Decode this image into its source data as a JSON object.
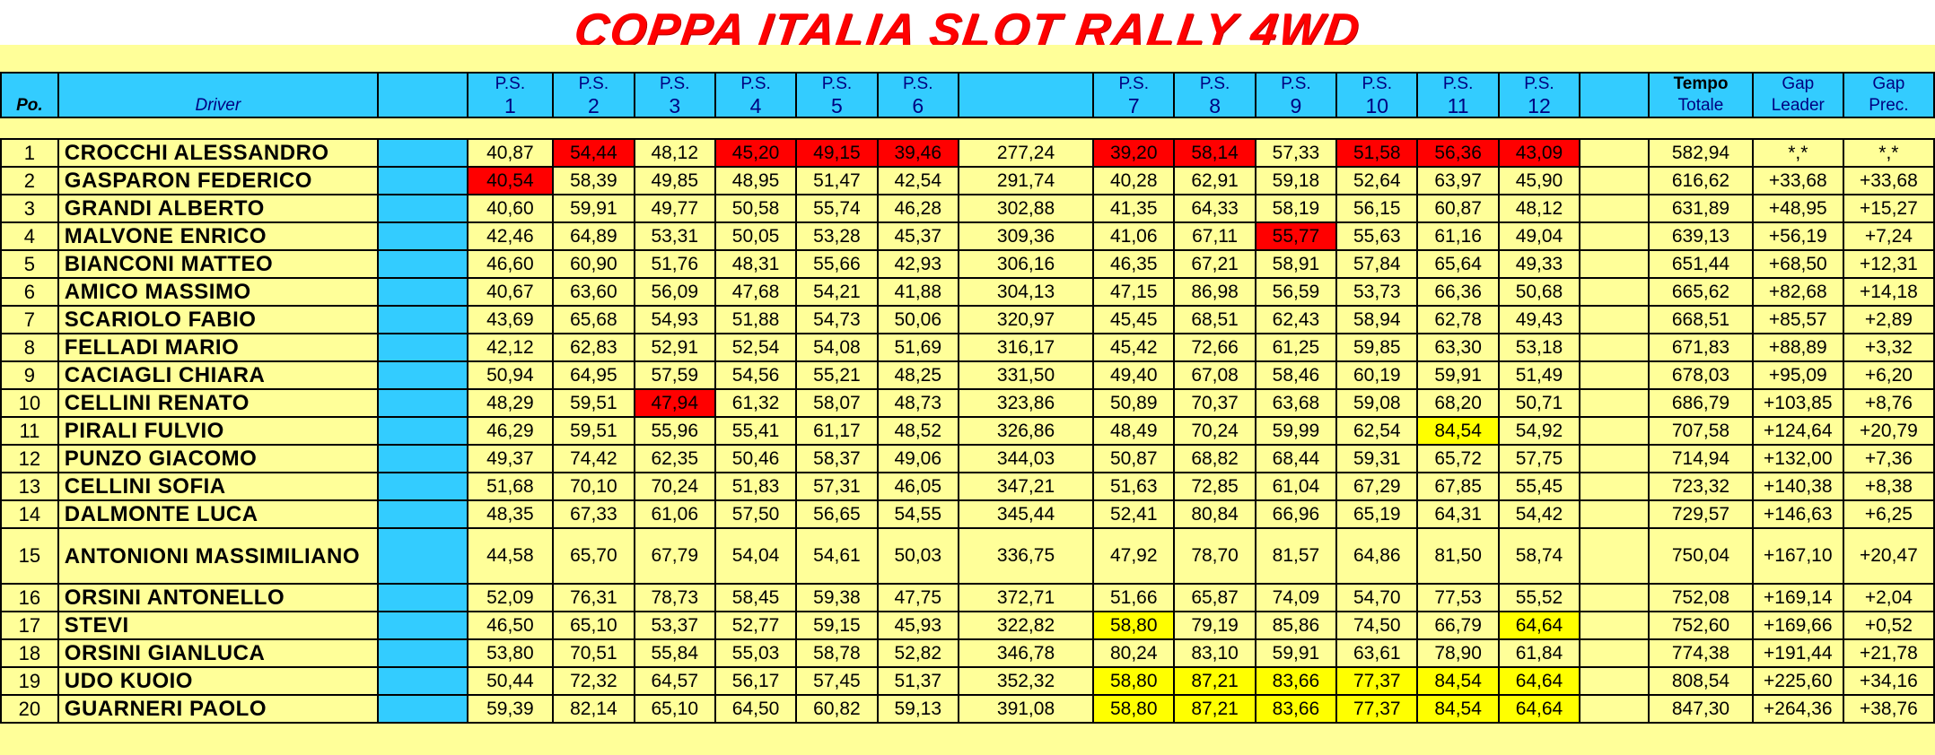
{
  "title": "COPPA ITALIA SLOT RALLY 4WD",
  "headers": {
    "pos": "Po.",
    "driver": "Driver",
    "ps": "P.S.",
    "stages": [
      "1",
      "2",
      "3",
      "4",
      "5",
      "6",
      "7",
      "8",
      "9",
      "10",
      "11",
      "12"
    ],
    "tempo_top": "Tempo",
    "tempo_bot": "Totale",
    "gap_top": "Gap",
    "gap_leader": "Leader",
    "gap_prec": "Prec."
  },
  "colors": {
    "header": "#33ccff",
    "sheet": "#ffff99",
    "best": "#ff0000",
    "penalty": "#ffff00",
    "title": "#ff0000"
  },
  "rows": [
    {
      "pos": "1",
      "name": "CROCCHI ALESSANDRO",
      "st": [
        "40,87",
        "54,44",
        "48,12",
        "45,20",
        "49,15",
        "39,46",
        "39,20",
        "58,14",
        "57,33",
        "51,58",
        "56,36",
        "43,09"
      ],
      "sub": "277,24",
      "total": "582,94",
      "gl": "*,*",
      "gp": "*,*",
      "red": [
        1,
        3,
        4,
        5,
        6,
        7,
        9,
        10,
        11
      ],
      "yel": []
    },
    {
      "pos": "2",
      "name": "GASPARON FEDERICO",
      "st": [
        "40,54",
        "58,39",
        "49,85",
        "48,95",
        "51,47",
        "42,54",
        "40,28",
        "62,91",
        "59,18",
        "52,64",
        "63,97",
        "45,90"
      ],
      "sub": "291,74",
      "total": "616,62",
      "gl": "+33,68",
      "gp": "+33,68",
      "red": [
        0
      ],
      "yel": []
    },
    {
      "pos": "3",
      "name": "GRANDI ALBERTO",
      "st": [
        "40,60",
        "59,91",
        "49,77",
        "50,58",
        "55,74",
        "46,28",
        "41,35",
        "64,33",
        "58,19",
        "56,15",
        "60,87",
        "48,12"
      ],
      "sub": "302,88",
      "total": "631,89",
      "gl": "+48,95",
      "gp": "+15,27",
      "red": [],
      "yel": []
    },
    {
      "pos": "4",
      "name": "MALVONE ENRICO",
      "st": [
        "42,46",
        "64,89",
        "53,31",
        "50,05",
        "53,28",
        "45,37",
        "41,06",
        "67,11",
        "55,77",
        "55,63",
        "61,16",
        "49,04"
      ],
      "sub": "309,36",
      "total": "639,13",
      "gl": "+56,19",
      "gp": "+7,24",
      "red": [
        8
      ],
      "yel": []
    },
    {
      "pos": "5",
      "name": "BIANCONI MATTEO",
      "st": [
        "46,60",
        "60,90",
        "51,76",
        "48,31",
        "55,66",
        "42,93",
        "46,35",
        "67,21",
        "58,91",
        "57,84",
        "65,64",
        "49,33"
      ],
      "sub": "306,16",
      "total": "651,44",
      "gl": "+68,50",
      "gp": "+12,31",
      "red": [],
      "yel": []
    },
    {
      "pos": "6",
      "name": "AMICO MASSIMO",
      "st": [
        "40,67",
        "63,60",
        "56,09",
        "47,68",
        "54,21",
        "41,88",
        "47,15",
        "86,98",
        "56,59",
        "53,73",
        "66,36",
        "50,68"
      ],
      "sub": "304,13",
      "total": "665,62",
      "gl": "+82,68",
      "gp": "+14,18",
      "red": [],
      "yel": []
    },
    {
      "pos": "7",
      "name": "SCARIOLO FABIO",
      "st": [
        "43,69",
        "65,68",
        "54,93",
        "51,88",
        "54,73",
        "50,06",
        "45,45",
        "68,51",
        "62,43",
        "58,94",
        "62,78",
        "49,43"
      ],
      "sub": "320,97",
      "total": "668,51",
      "gl": "+85,57",
      "gp": "+2,89",
      "red": [],
      "yel": []
    },
    {
      "pos": "8",
      "name": "FELLADI MARIO",
      "st": [
        "42,12",
        "62,83",
        "52,91",
        "52,54",
        "54,08",
        "51,69",
        "45,42",
        "72,66",
        "61,25",
        "59,85",
        "63,30",
        "53,18"
      ],
      "sub": "316,17",
      "total": "671,83",
      "gl": "+88,89",
      "gp": "+3,32",
      "red": [],
      "yel": []
    },
    {
      "pos": "9",
      "name": "CACIAGLI CHIARA",
      "st": [
        "50,94",
        "64,95",
        "57,59",
        "54,56",
        "55,21",
        "48,25",
        "49,40",
        "67,08",
        "58,46",
        "60,19",
        "59,91",
        "51,49"
      ],
      "sub": "331,50",
      "total": "678,03",
      "gl": "+95,09",
      "gp": "+6,20",
      "red": [],
      "yel": []
    },
    {
      "pos": "10",
      "name": "CELLINI RENATO",
      "st": [
        "48,29",
        "59,51",
        "47,94",
        "61,32",
        "58,07",
        "48,73",
        "50,89",
        "70,37",
        "63,68",
        "59,08",
        "68,20",
        "50,71"
      ],
      "sub": "323,86",
      "total": "686,79",
      "gl": "+103,85",
      "gp": "+8,76",
      "red": [
        2
      ],
      "yel": []
    },
    {
      "pos": "11",
      "name": "PIRALI FULVIO",
      "st": [
        "46,29",
        "59,51",
        "55,96",
        "55,41",
        "61,17",
        "48,52",
        "48,49",
        "70,24",
        "59,99",
        "62,54",
        "84,54",
        "54,92"
      ],
      "sub": "326,86",
      "total": "707,58",
      "gl": "+124,64",
      "gp": "+20,79",
      "red": [],
      "yel": [
        10
      ]
    },
    {
      "pos": "12",
      "name": "PUNZO GIACOMO",
      "st": [
        "49,37",
        "74,42",
        "62,35",
        "50,46",
        "58,37",
        "49,06",
        "50,87",
        "68,82",
        "68,44",
        "59,31",
        "65,72",
        "57,75"
      ],
      "sub": "344,03",
      "total": "714,94",
      "gl": "+132,00",
      "gp": "+7,36",
      "red": [],
      "yel": []
    },
    {
      "pos": "13",
      "name": "CELLINI SOFIA",
      "st": [
        "51,68",
        "70,10",
        "70,24",
        "51,83",
        "57,31",
        "46,05",
        "51,63",
        "72,85",
        "61,04",
        "67,29",
        "67,85",
        "55,45"
      ],
      "sub": "347,21",
      "total": "723,32",
      "gl": "+140,38",
      "gp": "+8,38",
      "red": [],
      "yel": []
    },
    {
      "pos": "14",
      "name": "DALMONTE LUCA",
      "st": [
        "48,35",
        "67,33",
        "61,06",
        "57,50",
        "56,65",
        "54,55",
        "52,41",
        "80,84",
        "66,96",
        "65,19",
        "64,31",
        "54,42"
      ],
      "sub": "345,44",
      "total": "729,57",
      "gl": "+146,63",
      "gp": "+6,25",
      "red": [],
      "yel": []
    },
    {
      "pos": "15",
      "name": "ANTONIONI MASSIMILIANO",
      "st": [
        "44,58",
        "65,70",
        "67,79",
        "54,04",
        "54,61",
        "50,03",
        "47,92",
        "78,70",
        "81,57",
        "64,86",
        "81,50",
        "58,74"
      ],
      "sub": "336,75",
      "total": "750,04",
      "gl": "+167,10",
      "gp": "+20,47",
      "red": [],
      "yel": [],
      "tall": true
    },
    {
      "pos": "16",
      "name": "ORSINI ANTONELLO",
      "st": [
        "52,09",
        "76,31",
        "78,73",
        "58,45",
        "59,38",
        "47,75",
        "51,66",
        "65,87",
        "74,09",
        "54,70",
        "77,53",
        "55,52"
      ],
      "sub": "372,71",
      "total": "752,08",
      "gl": "+169,14",
      "gp": "+2,04",
      "red": [],
      "yel": []
    },
    {
      "pos": "17",
      "name": "STEVI",
      "st": [
        "46,50",
        "65,10",
        "53,37",
        "52,77",
        "59,15",
        "45,93",
        "58,80",
        "79,19",
        "85,86",
        "74,50",
        "66,79",
        "64,64"
      ],
      "sub": "322,82",
      "total": "752,60",
      "gl": "+169,66",
      "gp": "+0,52",
      "red": [],
      "yel": [
        6,
        11
      ]
    },
    {
      "pos": "18",
      "name": "ORSINI GIANLUCA",
      "st": [
        "53,80",
        "70,51",
        "55,84",
        "55,03",
        "58,78",
        "52,82",
        "80,24",
        "83,10",
        "59,91",
        "63,61",
        "78,90",
        "61,84"
      ],
      "sub": "346,78",
      "total": "774,38",
      "gl": "+191,44",
      "gp": "+21,78",
      "red": [],
      "yel": []
    },
    {
      "pos": "19",
      "name": "UDO KUOIO",
      "st": [
        "50,44",
        "72,32",
        "64,57",
        "56,17",
        "57,45",
        "51,37",
        "58,80",
        "87,21",
        "83,66",
        "77,37",
        "84,54",
        "64,64"
      ],
      "sub": "352,32",
      "total": "808,54",
      "gl": "+225,60",
      "gp": "+34,16",
      "red": [],
      "yel": [
        6,
        7,
        8,
        9,
        10,
        11
      ]
    },
    {
      "pos": "20",
      "name": "GUARNERI PAOLO",
      "st": [
        "59,39",
        "82,14",
        "65,10",
        "64,50",
        "60,82",
        "59,13",
        "58,80",
        "87,21",
        "83,66",
        "77,37",
        "84,54",
        "64,64"
      ],
      "sub": "391,08",
      "total": "847,30",
      "gl": "+264,36",
      "gp": "+38,76",
      "red": [],
      "yel": [
        6,
        7,
        8,
        9,
        10,
        11
      ]
    }
  ]
}
